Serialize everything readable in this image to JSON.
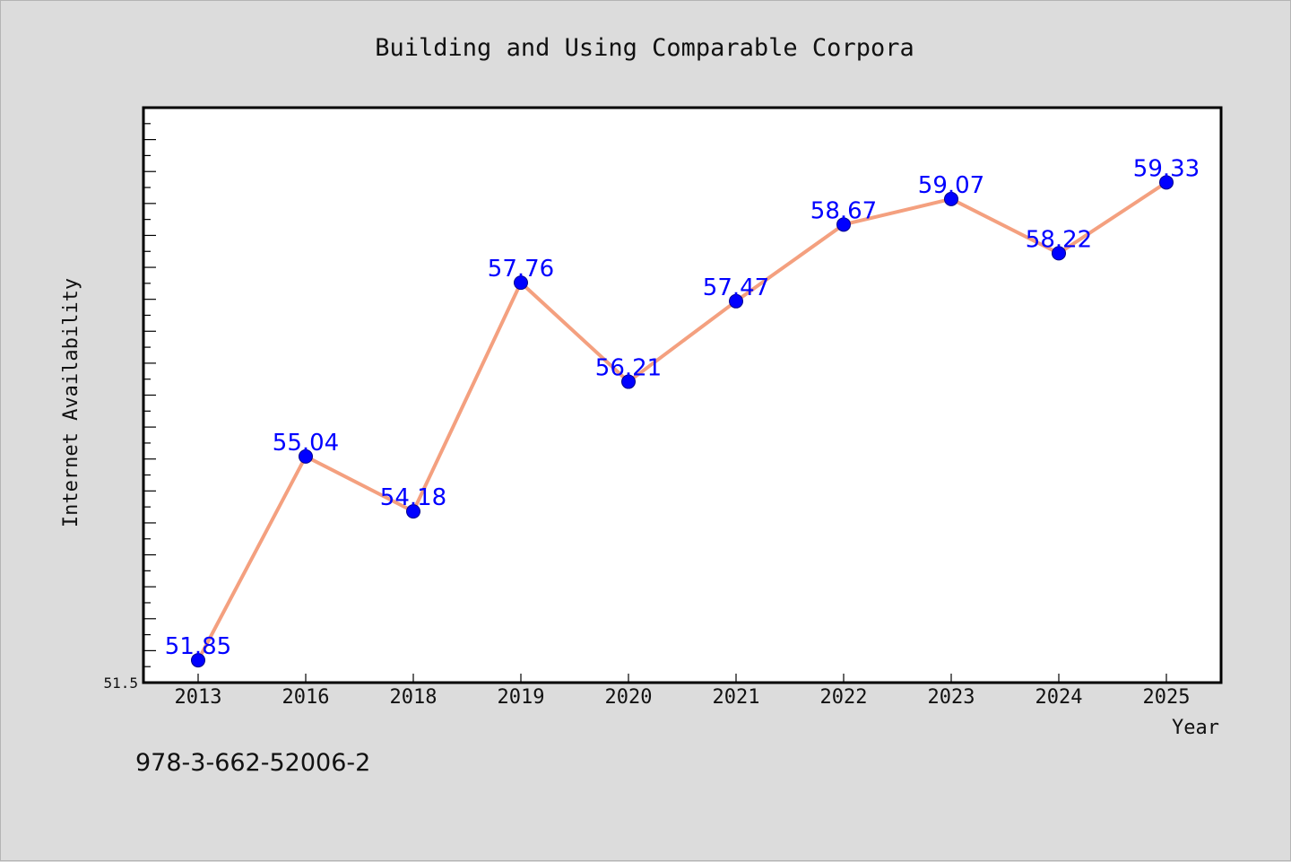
{
  "chart_data": {
    "type": "line",
    "title": "Building and Using Comparable Corpora",
    "xlabel": "Year",
    "ylabel": "Internet Availability",
    "categories": [
      "2013",
      "2016",
      "2018",
      "2019",
      "2020",
      "2021",
      "2022",
      "2023",
      "2024",
      "2025"
    ],
    "values": [
      51.85,
      55.04,
      54.18,
      57.76,
      56.21,
      57.47,
      58.67,
      59.07,
      58.22,
      59.33
    ],
    "data_labels": [
      "51.85",
      "55.04",
      "54.18",
      "57.76",
      "56.21",
      "57.47",
      "58.67",
      "59.07",
      "58.22",
      "59.33"
    ],
    "y_tick_labels": [
      "51.5"
    ],
    "ylim": [
      51.5,
      60.5
    ],
    "grid": false,
    "legend": "none",
    "colors": {
      "line": "#f4a07f",
      "marker": "#0000ff",
      "data_label": "#0000ff",
      "plot_background": "#ffffff",
      "page_background": "#dcdcdc"
    }
  },
  "footer": {
    "isbn": "978-3-662-52006-2"
  }
}
